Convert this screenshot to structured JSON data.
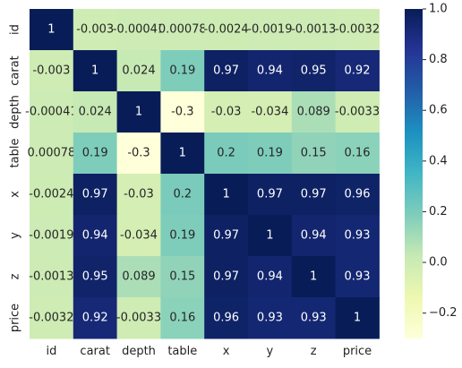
{
  "chart_data": {
    "type": "heatmap",
    "title": "",
    "xlabel": "",
    "ylabel": "",
    "row_labels": [
      "id",
      "carat",
      "depth",
      "table",
      "x",
      "y",
      "z",
      "price"
    ],
    "col_labels": [
      "id",
      "carat",
      "depth",
      "table",
      "x",
      "y",
      "z",
      "price"
    ],
    "values": [
      [
        1,
        -0.003,
        -0.00041,
        0.00078,
        -0.0024,
        -0.0019,
        -0.0013,
        -0.0032
      ],
      [
        -0.003,
        1,
        0.024,
        0.19,
        0.97,
        0.94,
        0.95,
        0.92
      ],
      [
        -0.00041,
        0.024,
        1,
        -0.3,
        -0.03,
        -0.034,
        0.089,
        -0.0033
      ],
      [
        0.00078,
        0.19,
        -0.3,
        1,
        0.2,
        0.19,
        0.15,
        0.16
      ],
      [
        -0.0024,
        0.97,
        -0.03,
        0.2,
        1,
        0.97,
        0.97,
        0.96
      ],
      [
        -0.0019,
        0.94,
        -0.034,
        0.19,
        0.97,
        1,
        0.94,
        0.93
      ],
      [
        -0.0013,
        0.95,
        0.089,
        0.15,
        0.97,
        0.94,
        1,
        0.93
      ],
      [
        -0.0032,
        0.92,
        -0.0033,
        0.16,
        0.96,
        0.93,
        0.93,
        1
      ]
    ],
    "colorbar": {
      "min": -0.3,
      "max": 1.0,
      "ticks": [
        1.0,
        0.8,
        0.6,
        0.4,
        0.2,
        0.0,
        -0.2
      ],
      "tick_labels": [
        "1.0",
        "0.8",
        "0.6",
        "0.4",
        "0.2",
        "0.0",
        "−0.2"
      ],
      "colormap": "YlGnBu",
      "stops": [
        "#ffffd9",
        "#edf8b1",
        "#c7e9b4",
        "#7fcdbb",
        "#41b6c4",
        "#1d91c0",
        "#225ea8",
        "#253494",
        "#081d58"
      ]
    },
    "grid": false
  }
}
